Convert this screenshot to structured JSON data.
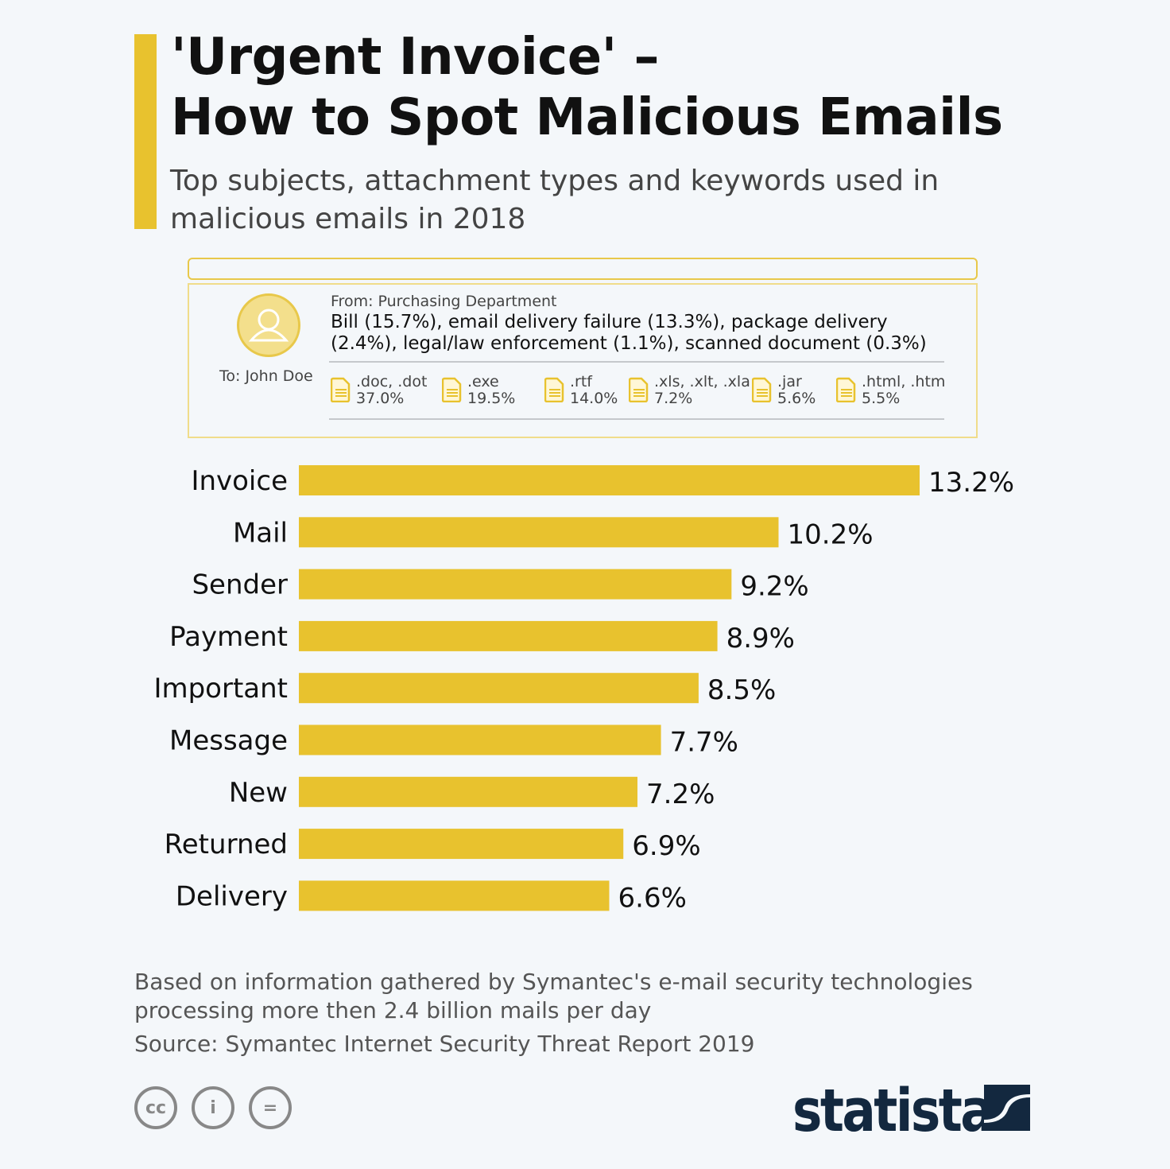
{
  "title_line1": "'Urgent Invoice' –",
  "title_line2": "How to Spot Malicious Emails",
  "subtitle": "Top subjects, attachment types and keywords used in malicious emails in 2018",
  "email": {
    "from": "From: Purchasing Department",
    "subjects": "Bill (15.7%), email delivery failure (13.3%), package delivery (2.4%), legal/law enforcement (1.1%), scanned document (0.3%)",
    "to": "To: John Doe",
    "attachments": [
      {
        "type": ".doc, .dot",
        "share": "37.0%"
      },
      {
        "type": ".exe",
        "share": "19.5%"
      },
      {
        "type": ".rtf",
        "share": "14.0%"
      },
      {
        "type": ".xls, .xlt, .xla",
        "share": "7.2%"
      },
      {
        "type": ".jar",
        "share": "5.6%"
      },
      {
        "type": ".html, .htm",
        "share": "5.5%"
      }
    ],
    "icons": {
      "avatar": "user-avatar-icon",
      "attachment": "document-icon"
    }
  },
  "chart_data": {
    "type": "bar",
    "orientation": "horizontal",
    "categories": [
      "Invoice",
      "Mail",
      "Sender",
      "Payment",
      "Important",
      "Message",
      "New",
      "Returned",
      "Delivery"
    ],
    "values": [
      13.2,
      10.2,
      9.2,
      8.9,
      8.5,
      7.7,
      7.2,
      6.9,
      6.6
    ],
    "labels": [
      "13.2%",
      "10.2%",
      "9.2%",
      "8.9%",
      "8.5%",
      "7.7%",
      "7.2%",
      "6.9%",
      "6.6%"
    ],
    "unit": "%",
    "color": "#e8c22e",
    "grid": false
  },
  "footer": {
    "note": "Based on information gathered by Symantec's e-mail security technologies processing more then 2.4 billion mails per day",
    "source": "Source: Symantec Internet Security Threat Report 2019",
    "license_icons": [
      "cc-icon",
      "attribution-icon",
      "no-derivatives-icon"
    ],
    "brand": "statista"
  },
  "colors": {
    "accent": "#e8c22e",
    "brand": "#13283f",
    "background": "#f4f7fa"
  }
}
